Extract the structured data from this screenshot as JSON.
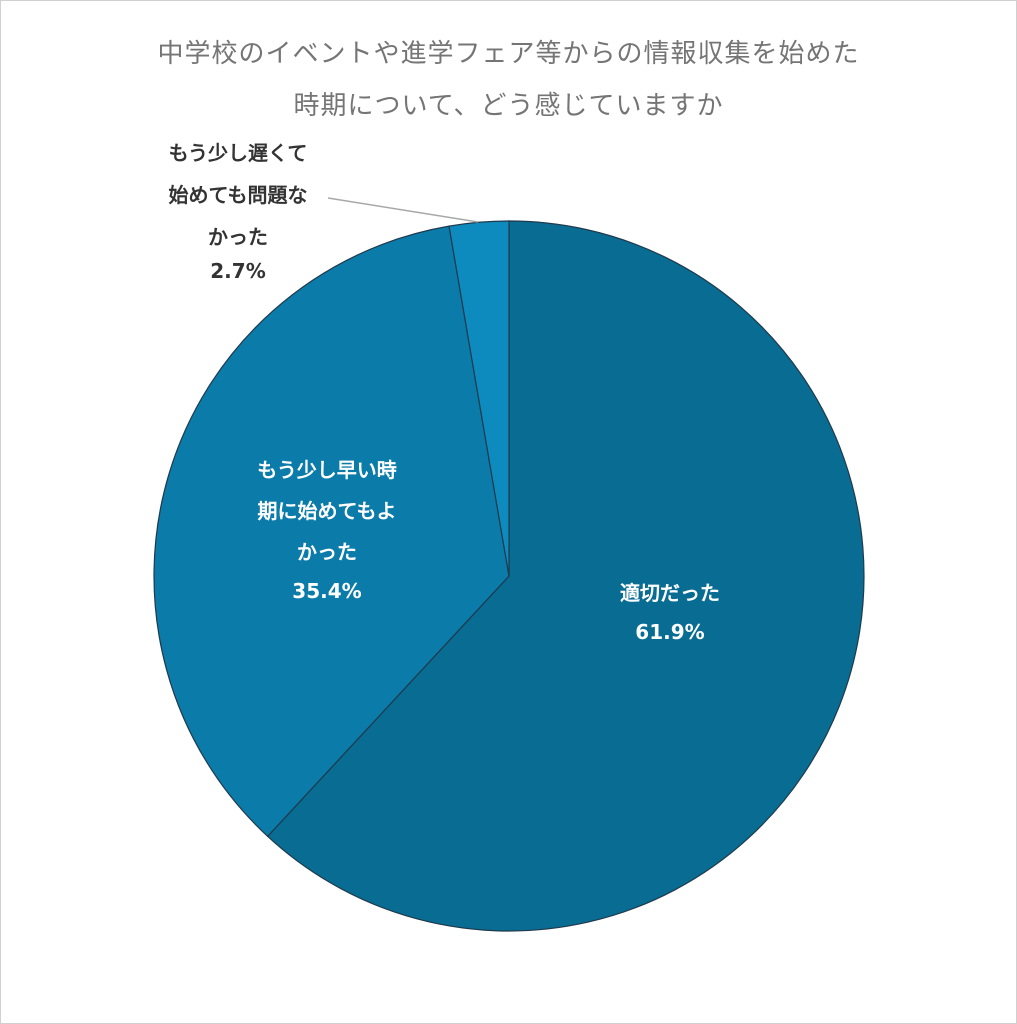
{
  "chart_data": {
    "type": "pie",
    "title_lines": [
      "中学校のイベントや進学フェア等からの情報収集を始めた",
      "時期について、どう感じていますか"
    ],
    "slices": [
      {
        "label_lines": [
          "適切だった"
        ],
        "value": 61.9,
        "value_label": "61.9%",
        "color": "#086C93"
      },
      {
        "label_lines": [
          "もう少し早い時",
          "期に始めてもよ",
          "かった"
        ],
        "value": 35.4,
        "value_label": "35.4%",
        "color": "#0B7BA9"
      },
      {
        "label_lines": [
          "もう少し遅くて",
          "始めても問題な",
          "かった"
        ],
        "value": 2.7,
        "value_label": "2.7%",
        "color": "#0E8BBE"
      }
    ],
    "start_angle": "top",
    "direction": "clockwise",
    "legend": "none",
    "slice_border_color": "#1f3a4d"
  }
}
